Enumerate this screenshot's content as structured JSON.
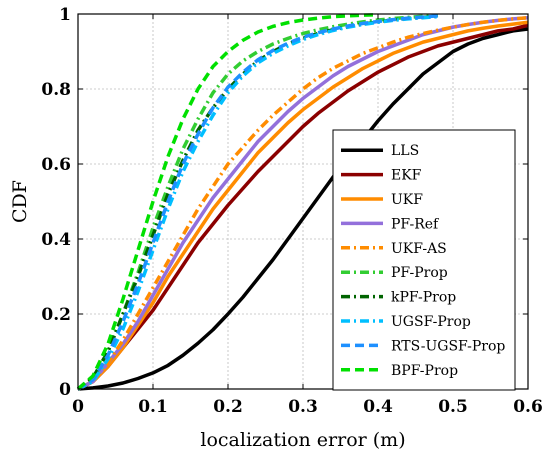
{
  "chart_data": {
    "type": "line",
    "title": "",
    "xlabel": "localization error (m)",
    "ylabel": "CDF",
    "xlim": [
      0,
      0.6
    ],
    "ylim": [
      0,
      1
    ],
    "xticks": [
      0,
      0.1,
      0.2,
      0.3,
      0.4,
      0.5,
      0.6
    ],
    "xtick_labels": [
      "0",
      "0.1",
      "0.2",
      "0.3",
      "0.4",
      "0.5",
      "0.6"
    ],
    "yticks": [
      0,
      0.2,
      0.4,
      0.6,
      0.8,
      1
    ],
    "ytick_labels": [
      "0",
      "0.2",
      "0.4",
      "0.6",
      "0.8",
      "1"
    ],
    "grid": true,
    "legend_position": "right",
    "series": [
      {
        "name": "LLS",
        "color": "#000000",
        "dash": "solid",
        "x": [
          0,
          0.02,
          0.04,
          0.06,
          0.08,
          0.1,
          0.12,
          0.14,
          0.16,
          0.18,
          0.2,
          0.22,
          0.24,
          0.26,
          0.28,
          0.3,
          0.32,
          0.34,
          0.36,
          0.38,
          0.4,
          0.42,
          0.44,
          0.46,
          0.48,
          0.5,
          0.52,
          0.54,
          0.56,
          0.58,
          0.6
        ],
        "y": [
          0,
          0.003,
          0.008,
          0.016,
          0.028,
          0.043,
          0.063,
          0.09,
          0.122,
          0.158,
          0.2,
          0.245,
          0.295,
          0.345,
          0.4,
          0.455,
          0.51,
          0.565,
          0.615,
          0.665,
          0.715,
          0.76,
          0.8,
          0.84,
          0.87,
          0.9,
          0.92,
          0.935,
          0.945,
          0.955,
          0.96
        ]
      },
      {
        "name": "EKF",
        "color": "#8b0000",
        "dash": "solid",
        "x": [
          0,
          0.02,
          0.04,
          0.06,
          0.08,
          0.1,
          0.12,
          0.14,
          0.16,
          0.18,
          0.2,
          0.22,
          0.24,
          0.26,
          0.28,
          0.3,
          0.32,
          0.34,
          0.36,
          0.38,
          0.4,
          0.42,
          0.44,
          0.46,
          0.48,
          0.5,
          0.52,
          0.54,
          0.56,
          0.58,
          0.6
        ],
        "y": [
          0,
          0.02,
          0.06,
          0.11,
          0.16,
          0.21,
          0.27,
          0.33,
          0.39,
          0.44,
          0.49,
          0.535,
          0.58,
          0.62,
          0.66,
          0.7,
          0.735,
          0.765,
          0.795,
          0.82,
          0.845,
          0.865,
          0.885,
          0.9,
          0.915,
          0.925,
          0.935,
          0.945,
          0.955,
          0.96,
          0.97
        ]
      },
      {
        "name": "UKF",
        "color": "#ff8c00",
        "dash": "solid",
        "x": [
          0,
          0.02,
          0.04,
          0.06,
          0.08,
          0.1,
          0.12,
          0.14,
          0.16,
          0.18,
          0.2,
          0.22,
          0.24,
          0.26,
          0.28,
          0.3,
          0.32,
          0.34,
          0.36,
          0.38,
          0.4,
          0.42,
          0.44,
          0.46,
          0.48,
          0.5,
          0.52,
          0.54,
          0.56,
          0.58,
          0.6
        ],
        "y": [
          0,
          0.02,
          0.06,
          0.11,
          0.17,
          0.23,
          0.3,
          0.36,
          0.42,
          0.48,
          0.53,
          0.58,
          0.63,
          0.67,
          0.71,
          0.745,
          0.775,
          0.805,
          0.83,
          0.855,
          0.875,
          0.895,
          0.91,
          0.925,
          0.935,
          0.945,
          0.955,
          0.962,
          0.968,
          0.973,
          0.978
        ]
      },
      {
        "name": "PF-Ref",
        "color": "#9370db",
        "dash": "solid",
        "x": [
          0,
          0.02,
          0.04,
          0.06,
          0.08,
          0.1,
          0.12,
          0.14,
          0.16,
          0.18,
          0.2,
          0.22,
          0.24,
          0.26,
          0.28,
          0.3,
          0.32,
          0.34,
          0.36,
          0.38,
          0.4,
          0.42,
          0.44,
          0.46,
          0.48,
          0.5,
          0.52,
          0.54,
          0.56,
          0.58,
          0.6
        ],
        "y": [
          0,
          0.02,
          0.07,
          0.12,
          0.18,
          0.25,
          0.32,
          0.39,
          0.45,
          0.51,
          0.56,
          0.61,
          0.66,
          0.7,
          0.74,
          0.775,
          0.805,
          0.835,
          0.86,
          0.88,
          0.9,
          0.915,
          0.93,
          0.945,
          0.955,
          0.965,
          0.972,
          0.978,
          0.983,
          0.987,
          0.99
        ]
      },
      {
        "name": "UKF-AS",
        "color": "#ff8c00",
        "dash": "dashdot",
        "x": [
          0,
          0.02,
          0.04,
          0.06,
          0.08,
          0.1,
          0.12,
          0.14,
          0.16,
          0.18,
          0.2,
          0.22,
          0.24,
          0.26,
          0.28,
          0.3,
          0.32,
          0.34,
          0.36,
          0.38,
          0.4,
          0.42,
          0.44,
          0.46,
          0.48,
          0.5,
          0.52,
          0.54,
          0.56,
          0.58,
          0.6
        ],
        "y": [
          0,
          0.02,
          0.07,
          0.13,
          0.2,
          0.27,
          0.34,
          0.41,
          0.48,
          0.54,
          0.6,
          0.645,
          0.69,
          0.73,
          0.765,
          0.8,
          0.83,
          0.855,
          0.875,
          0.895,
          0.91,
          0.925,
          0.938,
          0.948,
          0.957,
          0.965,
          0.972,
          0.978,
          0.983,
          0.987,
          0.99
        ]
      },
      {
        "name": "PF-Prop",
        "color": "#32cd32",
        "dash": "dashdot",
        "x": [
          0,
          0.02,
          0.04,
          0.06,
          0.08,
          0.1,
          0.12,
          0.14,
          0.16,
          0.18,
          0.2,
          0.22,
          0.24,
          0.26,
          0.28,
          0.3,
          0.32,
          0.34,
          0.36,
          0.38,
          0.4,
          0.42,
          0.44,
          0.46,
          0.48
        ],
        "y": [
          0,
          0.03,
          0.1,
          0.2,
          0.31,
          0.43,
          0.54,
          0.64,
          0.72,
          0.79,
          0.84,
          0.875,
          0.9,
          0.92,
          0.935,
          0.948,
          0.958,
          0.966,
          0.973,
          0.979,
          0.984,
          0.988,
          0.991,
          0.994,
          0.996
        ]
      },
      {
        "name": "kPF-Prop",
        "color": "#006400",
        "dash": "dashdot",
        "x": [
          0,
          0.02,
          0.04,
          0.06,
          0.08,
          0.1,
          0.12,
          0.14,
          0.16,
          0.18,
          0.2,
          0.22,
          0.24,
          0.26,
          0.28,
          0.3,
          0.32,
          0.34,
          0.36,
          0.38,
          0.4,
          0.42,
          0.44,
          0.46,
          0.48
        ],
        "y": [
          0,
          0.03,
          0.1,
          0.2,
          0.3,
          0.41,
          0.52,
          0.61,
          0.69,
          0.75,
          0.8,
          0.84,
          0.875,
          0.9,
          0.92,
          0.935,
          0.948,
          0.958,
          0.966,
          0.973,
          0.979,
          0.984,
          0.988,
          0.991,
          0.994
        ]
      },
      {
        "name": "UGSF-Prop",
        "color": "#00bfff",
        "dash": "dashdot",
        "x": [
          0,
          0.02,
          0.04,
          0.06,
          0.08,
          0.1,
          0.12,
          0.14,
          0.16,
          0.18,
          0.2,
          0.22,
          0.24,
          0.26,
          0.28,
          0.3,
          0.32,
          0.34,
          0.36,
          0.38,
          0.4,
          0.42,
          0.44,
          0.46,
          0.48
        ],
        "y": [
          0,
          0.02,
          0.08,
          0.16,
          0.26,
          0.37,
          0.48,
          0.58,
          0.66,
          0.73,
          0.79,
          0.835,
          0.87,
          0.895,
          0.915,
          0.932,
          0.945,
          0.956,
          0.965,
          0.972,
          0.978,
          0.983,
          0.987,
          0.99,
          0.993
        ]
      },
      {
        "name": "RTS-UGSF-Prop",
        "color": "#1e90ff",
        "dash": "dashed",
        "x": [
          0,
          0.02,
          0.04,
          0.06,
          0.08,
          0.1,
          0.12,
          0.14,
          0.16,
          0.18,
          0.2,
          0.22,
          0.24,
          0.26,
          0.28,
          0.3,
          0.32,
          0.34,
          0.36,
          0.38,
          0.4,
          0.42,
          0.44,
          0.46,
          0.48
        ],
        "y": [
          0,
          0.025,
          0.09,
          0.18,
          0.28,
          0.39,
          0.5,
          0.6,
          0.68,
          0.75,
          0.805,
          0.845,
          0.878,
          0.903,
          0.922,
          0.938,
          0.95,
          0.96,
          0.968,
          0.975,
          0.98,
          0.985,
          0.989,
          0.992,
          0.995
        ]
      },
      {
        "name": "BPF-Prop",
        "color": "#00e000",
        "dash": "dashed",
        "x": [
          0,
          0.02,
          0.04,
          0.06,
          0.08,
          0.1,
          0.12,
          0.14,
          0.16,
          0.18,
          0.2,
          0.22,
          0.24,
          0.26,
          0.28,
          0.3,
          0.32,
          0.34,
          0.36,
          0.38,
          0.4
        ],
        "y": [
          0,
          0.035,
          0.12,
          0.24,
          0.37,
          0.5,
          0.62,
          0.72,
          0.8,
          0.86,
          0.9,
          0.93,
          0.952,
          0.967,
          0.977,
          0.984,
          0.989,
          0.993,
          0.995,
          0.997,
          0.998
        ]
      }
    ]
  }
}
